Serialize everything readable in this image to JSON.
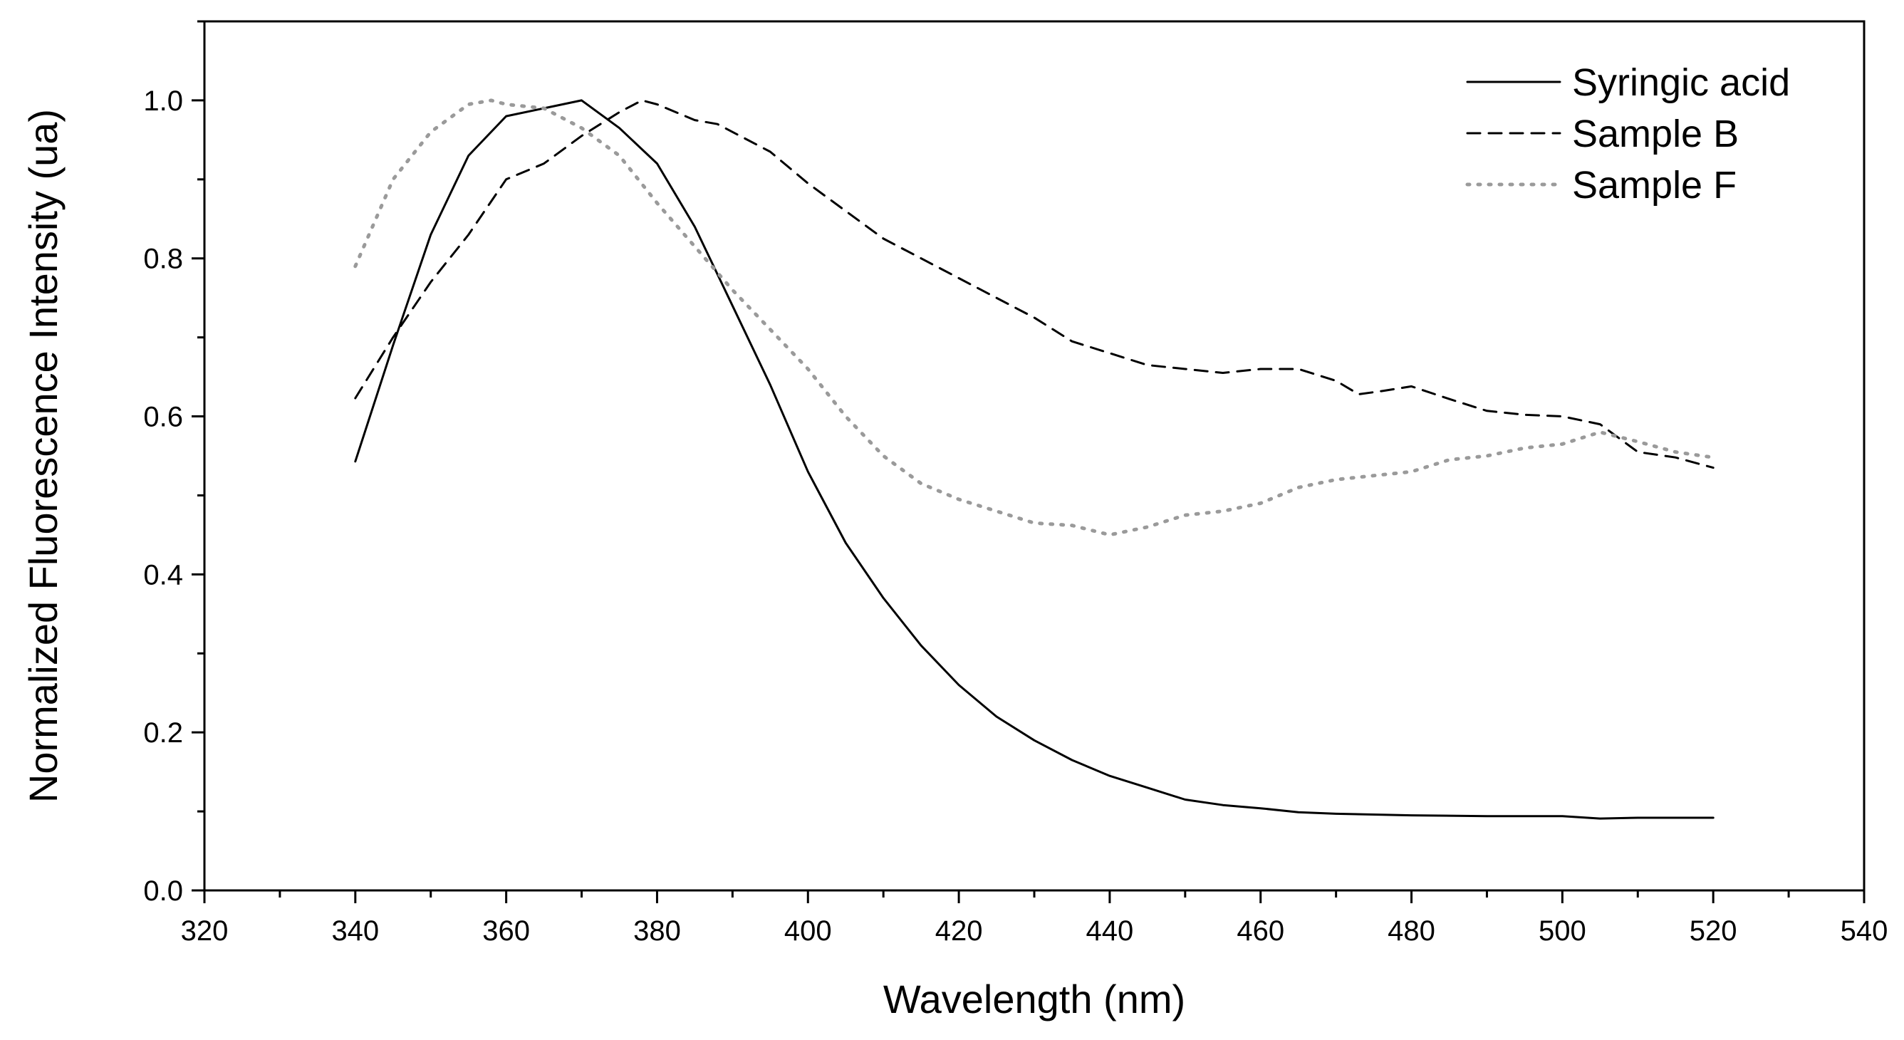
{
  "chart_data": {
    "type": "line",
    "title": "",
    "xlabel": "Wavelength (nm)",
    "ylabel": "Normalized Fluorescence Intensity (ua)",
    "xlim": [
      320,
      540
    ],
    "ylim": [
      0.0,
      1.1
    ],
    "xticks": [
      320,
      340,
      360,
      380,
      400,
      420,
      440,
      460,
      480,
      500,
      520,
      540
    ],
    "xtick_labels": [
      "320",
      "340",
      "360",
      "380",
      "400",
      "420",
      "440",
      "460",
      "480",
      "500",
      "520",
      "540"
    ],
    "yticks": [
      0.0,
      0.2,
      0.4,
      0.6,
      0.8,
      1.0
    ],
    "ytick_labels": [
      "0.0",
      "0.2",
      "0.4",
      "0.6",
      "0.8",
      "1.0"
    ],
    "grid": false,
    "legend_position": "top-right",
    "series": [
      {
        "name": "Syringic acid",
        "style": "solid",
        "color": "#000000",
        "x": [
          340,
          345,
          350,
          355,
          360,
          365,
          370,
          375,
          380,
          385,
          390,
          395,
          400,
          405,
          410,
          415,
          420,
          425,
          430,
          435,
          440,
          445,
          450,
          455,
          460,
          465,
          470,
          480,
          490,
          500,
          505,
          510,
          520
        ],
        "y": [
          0.543,
          0.69,
          0.83,
          0.93,
          0.98,
          0.99,
          1.0,
          0.965,
          0.92,
          0.84,
          0.74,
          0.64,
          0.53,
          0.44,
          0.37,
          0.31,
          0.26,
          0.22,
          0.19,
          0.165,
          0.145,
          0.13,
          0.115,
          0.108,
          0.104,
          0.099,
          0.097,
          0.095,
          0.094,
          0.094,
          0.091,
          0.092,
          0.092
        ]
      },
      {
        "name": "Sample B",
        "style": "dashed",
        "color": "#000000",
        "x": [
          340,
          345,
          350,
          355,
          360,
          365,
          370,
          375,
          378,
          380,
          385,
          388,
          390,
          395,
          400,
          405,
          410,
          415,
          420,
          425,
          430,
          435,
          440,
          445,
          450,
          455,
          460,
          465,
          470,
          473,
          476,
          480,
          485,
          490,
          495,
          500,
          505,
          510,
          515,
          520
        ],
        "y": [
          0.623,
          0.7,
          0.77,
          0.83,
          0.9,
          0.92,
          0.955,
          0.985,
          1.0,
          0.995,
          0.975,
          0.97,
          0.96,
          0.935,
          0.895,
          0.86,
          0.825,
          0.8,
          0.775,
          0.75,
          0.725,
          0.695,
          0.68,
          0.665,
          0.66,
          0.655,
          0.66,
          0.66,
          0.645,
          0.628,
          0.632,
          0.638,
          0.622,
          0.607,
          0.602,
          0.6,
          0.59,
          0.555,
          0.548,
          0.535
        ]
      },
      {
        "name": "Sample F",
        "style": "dotted",
        "color": "#9a9a9a",
        "x": [
          340,
          345,
          350,
          355,
          358,
          360,
          365,
          370,
          375,
          380,
          385,
          390,
          395,
          400,
          405,
          410,
          415,
          420,
          425,
          430,
          435,
          440,
          445,
          450,
          455,
          460,
          465,
          470,
          475,
          480,
          485,
          490,
          495,
          500,
          505,
          510,
          515,
          520
        ],
        "y": [
          0.79,
          0.9,
          0.96,
          0.995,
          1.0,
          0.995,
          0.99,
          0.965,
          0.93,
          0.87,
          0.815,
          0.76,
          0.71,
          0.66,
          0.6,
          0.55,
          0.515,
          0.495,
          0.48,
          0.465,
          0.462,
          0.45,
          0.46,
          0.475,
          0.48,
          0.49,
          0.51,
          0.52,
          0.525,
          0.53,
          0.545,
          0.55,
          0.56,
          0.565,
          0.58,
          0.568,
          0.555,
          0.548
        ]
      }
    ]
  }
}
